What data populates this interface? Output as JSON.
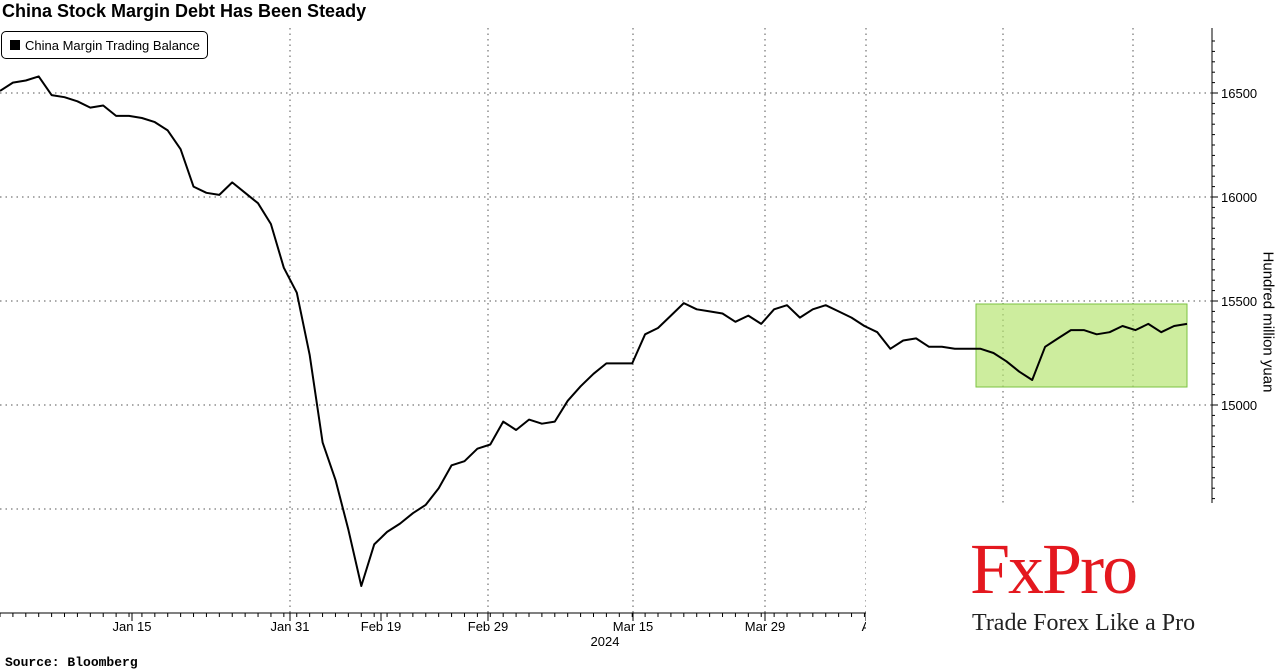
{
  "chart_data": {
    "type": "line",
    "title": "China Stock Margin Debt Has Been Steady",
    "ylabel": "Hundred million yuan",
    "ylim": [
      14000,
      16800
    ],
    "y_ticks": [
      15000,
      15500,
      16000,
      16500
    ],
    "x_tick_labels": [
      "Jan 15",
      "Jan 31",
      "Feb 19",
      "Feb 29",
      "Mar 15",
      "Mar 29",
      "A"
    ],
    "x_year_label": "2024",
    "grid": true,
    "legend": "top-left",
    "highlight_color": "#b2e36a",
    "series": [
      {
        "name": "China Margin Trading Balance",
        "color": "#000000",
        "values": [
          16510,
          16550,
          16560,
          16580,
          16490,
          16480,
          16460,
          16430,
          16440,
          16390,
          16390,
          16380,
          16360,
          16320,
          16230,
          16050,
          16020,
          16010,
          16070,
          16020,
          15970,
          15870,
          15660,
          15540,
          15240,
          14820,
          14640,
          14400,
          14130,
          14330,
          14390,
          14430,
          14480,
          14520,
          14600,
          14710,
          14730,
          14790,
          14810,
          14920,
          14880,
          14930,
          14910,
          14920,
          15020,
          15090,
          15150,
          15200,
          15200,
          15200,
          15340,
          15370,
          15430,
          15490,
          15460,
          15450,
          15440,
          15400,
          15430,
          15390,
          15460,
          15480,
          15420,
          15460,
          15480,
          15450,
          15420,
          15380,
          15350,
          15270,
          15310,
          15320,
          15280,
          15280,
          15270,
          15270,
          15270,
          15250,
          15210,
          15160,
          15120,
          15280,
          15320,
          15360,
          15360,
          15340,
          15350,
          15380,
          15360,
          15390,
          15350,
          15380,
          15390
        ]
      }
    ]
  },
  "source": "Source: Bloomberg",
  "watermark": {
    "brand": "FxPro",
    "tagline": "Trade Forex Like a Pro"
  }
}
